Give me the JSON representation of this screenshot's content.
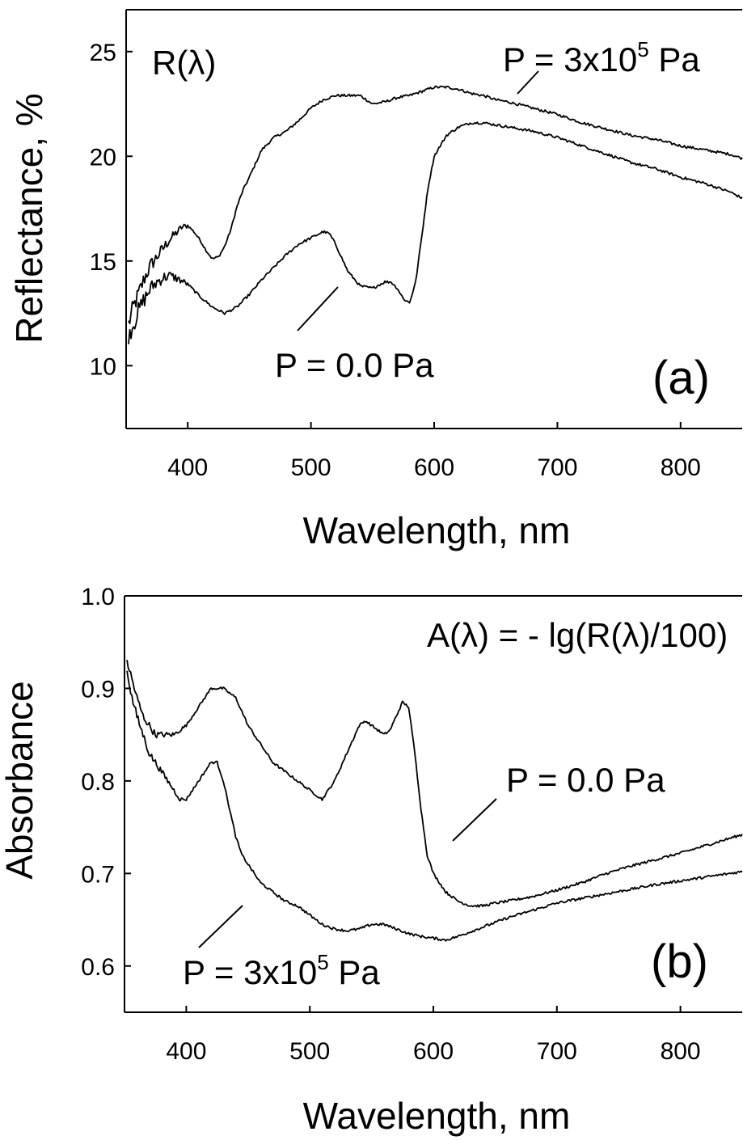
{
  "chart_data": [
    {
      "type": "line",
      "xlabel": "Wavelength, nm",
      "ylabel": "Reflectance, %",
      "xlim": [
        350,
        850
      ],
      "ylim": [
        7,
        27
      ],
      "xticks": [
        400,
        500,
        600,
        700,
        800
      ],
      "yticks": [
        10,
        15,
        20,
        25
      ],
      "grid": false,
      "annotations": {
        "corner_label": "R(λ)",
        "panel_label": "(a)",
        "series_labels": [
          {
            "text": "P = 3x10",
            "sup": "5",
            "suffix": " Pa"
          },
          {
            "text": "P = 0.0 Pa",
            "sup": "",
            "suffix": ""
          }
        ]
      },
      "series": [
        {
          "x": [
            352,
            356,
            360,
            365,
            370,
            375,
            380,
            385,
            390,
            395,
            400,
            405,
            410,
            415,
            420,
            425,
            430,
            435,
            440,
            445,
            450,
            460,
            470,
            480,
            490,
            500,
            510,
            520,
            530,
            540,
            550,
            560,
            570,
            580,
            590,
            600,
            610,
            620,
            630,
            640,
            650,
            660,
            680,
            700,
            720,
            740,
            760,
            780,
            800,
            820,
            840,
            850
          ],
          "y": [
            12.0,
            12.8,
            13.4,
            14.2,
            14.8,
            15.2,
            15.6,
            16.0,
            16.3,
            16.6,
            16.7,
            16.4,
            16.0,
            15.5,
            15.1,
            15.2,
            15.7,
            16.5,
            17.6,
            18.4,
            19.0,
            20.3,
            20.9,
            21.2,
            21.7,
            22.3,
            22.7,
            22.9,
            22.9,
            22.9,
            22.5,
            22.6,
            22.8,
            22.9,
            23.1,
            23.3,
            23.3,
            23.2,
            23.0,
            22.9,
            22.7,
            22.6,
            22.3,
            22.0,
            21.6,
            21.3,
            21.0,
            20.8,
            20.5,
            20.3,
            20.1,
            19.9
          ]
        },
        {
          "x": [
            352,
            356,
            360,
            365,
            370,
            375,
            380,
            385,
            390,
            400,
            410,
            420,
            430,
            440,
            450,
            460,
            470,
            480,
            490,
            500,
            510,
            515,
            520,
            530,
            540,
            550,
            560,
            565,
            570,
            575,
            580,
            585,
            590,
            595,
            600,
            610,
            620,
            630,
            640,
            650,
            660,
            680,
            700,
            720,
            740,
            760,
            780,
            800,
            820,
            840,
            850
          ],
          "y": [
            11.5,
            12.0,
            12.6,
            13.2,
            13.7,
            14.0,
            14.2,
            14.3,
            14.2,
            13.9,
            13.3,
            12.8,
            12.5,
            12.8,
            13.4,
            14.1,
            14.7,
            15.3,
            15.8,
            16.1,
            16.4,
            16.3,
            15.8,
            14.5,
            13.8,
            13.7,
            14.0,
            14.0,
            13.7,
            13.2,
            13.0,
            14.0,
            16.2,
            18.5,
            20.0,
            21.0,
            21.4,
            21.6,
            21.6,
            21.5,
            21.4,
            21.2,
            20.9,
            20.5,
            20.1,
            19.7,
            19.4,
            19.0,
            18.7,
            18.3,
            18.0
          ]
        }
      ]
    },
    {
      "type": "line",
      "xlabel": "Wavelength, nm",
      "ylabel": "Absorbance",
      "xlim": [
        350,
        850
      ],
      "ylim": [
        0.55,
        1.0
      ],
      "xticks": [
        400,
        500,
        600,
        700,
        800
      ],
      "yticks": [
        0.6,
        0.7,
        0.8,
        0.9,
        1.0
      ],
      "ytick_labels": [
        "0.6",
        "0.7",
        "0.8",
        "0.9",
        "1.0"
      ],
      "grid": false,
      "annotations": {
        "formula": "A(λ) = - lg(R(λ)/100)",
        "panel_label": "(b)",
        "series_labels": [
          {
            "text": "P = 0.0 Pa",
            "sup": "",
            "suffix": ""
          },
          {
            "text": "P = 3x10",
            "sup": "5",
            "suffix": " Pa"
          }
        ]
      },
      "series": [
        {
          "x": [
            352,
            356,
            360,
            365,
            370,
            375,
            380,
            385,
            390,
            400,
            410,
            420,
            430,
            440,
            450,
            460,
            470,
            480,
            490,
            500,
            510,
            515,
            520,
            530,
            540,
            545,
            550,
            560,
            565,
            570,
            575,
            580,
            585,
            590,
            595,
            600,
            610,
            620,
            630,
            640,
            650,
            660,
            680,
            700,
            720,
            740,
            760,
            780,
            800,
            820,
            840,
            850
          ],
          "y": [
            0.93,
            0.91,
            0.89,
            0.87,
            0.86,
            0.85,
            0.85,
            0.85,
            0.85,
            0.86,
            0.88,
            0.9,
            0.9,
            0.89,
            0.86,
            0.84,
            0.82,
            0.81,
            0.8,
            0.79,
            0.78,
            0.79,
            0.8,
            0.83,
            0.86,
            0.865,
            0.86,
            0.85,
            0.855,
            0.87,
            0.885,
            0.88,
            0.83,
            0.77,
            0.72,
            0.7,
            0.68,
            0.67,
            0.665,
            0.665,
            0.668,
            0.67,
            0.675,
            0.682,
            0.69,
            0.7,
            0.708,
            0.715,
            0.722,
            0.73,
            0.738,
            0.742
          ]
        },
        {
          "x": [
            352,
            356,
            360,
            365,
            370,
            375,
            380,
            385,
            390,
            395,
            400,
            405,
            410,
            415,
            420,
            425,
            430,
            435,
            440,
            445,
            450,
            460,
            470,
            480,
            490,
            500,
            510,
            520,
            530,
            540,
            550,
            560,
            570,
            580,
            590,
            600,
            610,
            620,
            630,
            640,
            650,
            660,
            680,
            700,
            720,
            740,
            760,
            780,
            800,
            820,
            840,
            850
          ],
          "y": [
            0.92,
            0.89,
            0.87,
            0.85,
            0.83,
            0.82,
            0.81,
            0.8,
            0.79,
            0.78,
            0.78,
            0.79,
            0.8,
            0.81,
            0.82,
            0.82,
            0.8,
            0.77,
            0.74,
            0.72,
            0.71,
            0.69,
            0.68,
            0.67,
            0.665,
            0.655,
            0.645,
            0.64,
            0.638,
            0.64,
            0.645,
            0.645,
            0.64,
            0.635,
            0.632,
            0.63,
            0.628,
            0.632,
            0.637,
            0.642,
            0.647,
            0.652,
            0.66,
            0.668,
            0.673,
            0.678,
            0.683,
            0.688,
            0.692,
            0.696,
            0.7,
            0.702
          ]
        }
      ]
    }
  ]
}
